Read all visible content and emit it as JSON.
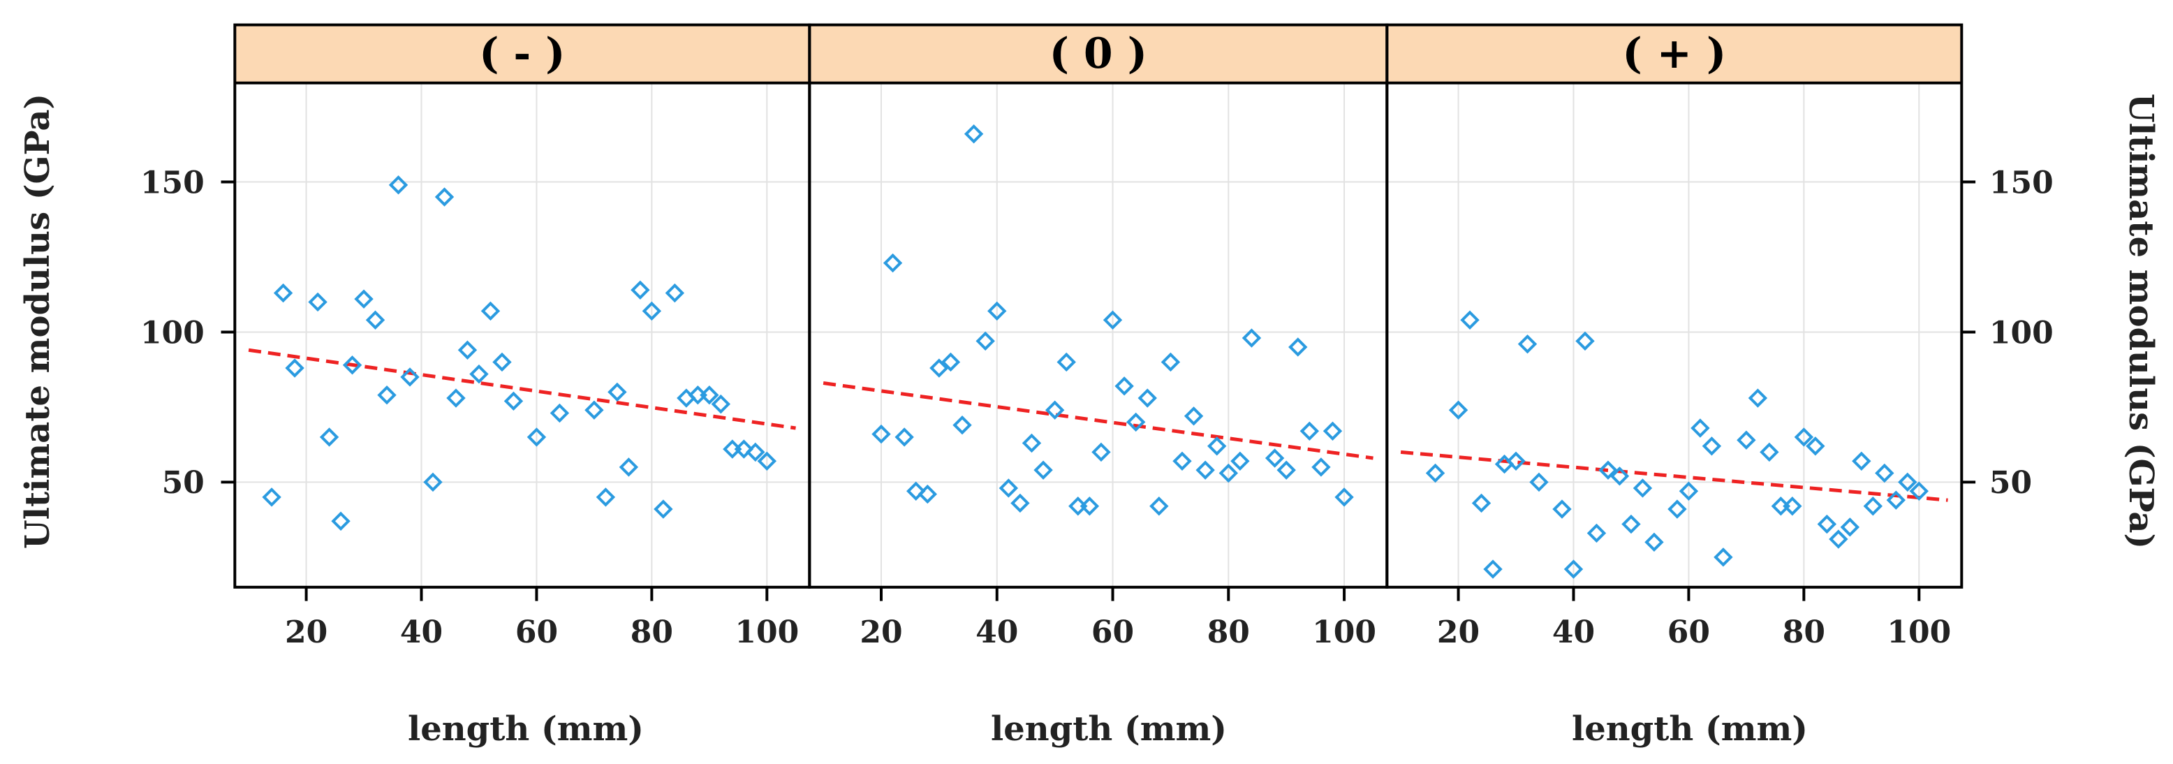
{
  "chart_data": {
    "type": "scatter",
    "layout": "three panels side by side",
    "xlabel": "length (mm)",
    "ylabel": "Ultimate modulus (GPa)",
    "xlim": [
      10,
      105
    ],
    "ylim": [
      15,
      183
    ],
    "xticks": [
      20,
      40,
      60,
      80,
      100
    ],
    "yticks": [
      50,
      100,
      150
    ],
    "grid": true,
    "colors": {
      "points": "#2b9be0",
      "trend": "#ee2222",
      "strip": "#fcd9b4",
      "frame": "#000000"
    },
    "panels": [
      {
        "label": "( - )",
        "trend": {
          "x": [
            10,
            105
          ],
          "y": [
            94,
            68
          ]
        },
        "points": [
          [
            14,
            45
          ],
          [
            16,
            113
          ],
          [
            18,
            88
          ],
          [
            22,
            110
          ],
          [
            24,
            65
          ],
          [
            26,
            37
          ],
          [
            28,
            89
          ],
          [
            30,
            111
          ],
          [
            32,
            104
          ],
          [
            34,
            79
          ],
          [
            36,
            149
          ],
          [
            38,
            85
          ],
          [
            42,
            50
          ],
          [
            44,
            145
          ],
          [
            46,
            78
          ],
          [
            48,
            94
          ],
          [
            50,
            86
          ],
          [
            52,
            107
          ],
          [
            54,
            90
          ],
          [
            56,
            77
          ],
          [
            60,
            65
          ],
          [
            64,
            73
          ],
          [
            70,
            74
          ],
          [
            72,
            45
          ],
          [
            74,
            80
          ],
          [
            76,
            55
          ],
          [
            78,
            114
          ],
          [
            80,
            107
          ],
          [
            82,
            41
          ],
          [
            84,
            113
          ],
          [
            86,
            78
          ],
          [
            88,
            79
          ],
          [
            90,
            79
          ],
          [
            92,
            76
          ],
          [
            94,
            61
          ],
          [
            96,
            61
          ],
          [
            98,
            60
          ],
          [
            100,
            57
          ]
        ]
      },
      {
        "label": "( 0 )",
        "trend": {
          "x": [
            10,
            105
          ],
          "y": [
            83,
            58
          ]
        },
        "points": [
          [
            20,
            66
          ],
          [
            22,
            123
          ],
          [
            24,
            65
          ],
          [
            26,
            47
          ],
          [
            28,
            46
          ],
          [
            30,
            88
          ],
          [
            32,
            90
          ],
          [
            34,
            69
          ],
          [
            36,
            166
          ],
          [
            38,
            97
          ],
          [
            40,
            107
          ],
          [
            42,
            48
          ],
          [
            44,
            43
          ],
          [
            46,
            63
          ],
          [
            48,
            54
          ],
          [
            50,
            74
          ],
          [
            52,
            90
          ],
          [
            54,
            42
          ],
          [
            56,
            42
          ],
          [
            58,
            60
          ],
          [
            60,
            104
          ],
          [
            62,
            82
          ],
          [
            64,
            70
          ],
          [
            66,
            78
          ],
          [
            68,
            42
          ],
          [
            70,
            90
          ],
          [
            72,
            57
          ],
          [
            74,
            72
          ],
          [
            76,
            54
          ],
          [
            78,
            62
          ],
          [
            80,
            53
          ],
          [
            82,
            57
          ],
          [
            84,
            98
          ],
          [
            88,
            58
          ],
          [
            90,
            54
          ],
          [
            92,
            95
          ],
          [
            94,
            67
          ],
          [
            96,
            55
          ],
          [
            98,
            67
          ],
          [
            100,
            45
          ]
        ]
      },
      {
        "label": "( + )",
        "trend": {
          "x": [
            10,
            105
          ],
          "y": [
            60,
            44
          ]
        },
        "points": [
          [
            16,
            53
          ],
          [
            20,
            74
          ],
          [
            22,
            104
          ],
          [
            24,
            43
          ],
          [
            26,
            21
          ],
          [
            28,
            56
          ],
          [
            30,
            57
          ],
          [
            32,
            96
          ],
          [
            34,
            50
          ],
          [
            38,
            41
          ],
          [
            40,
            21
          ],
          [
            42,
            97
          ],
          [
            44,
            33
          ],
          [
            46,
            54
          ],
          [
            48,
            52
          ],
          [
            50,
            36
          ],
          [
            52,
            48
          ],
          [
            54,
            30
          ],
          [
            58,
            41
          ],
          [
            60,
            47
          ],
          [
            62,
            68
          ],
          [
            64,
            62
          ],
          [
            66,
            25
          ],
          [
            70,
            64
          ],
          [
            72,
            78
          ],
          [
            74,
            60
          ],
          [
            76,
            42
          ],
          [
            78,
            42
          ],
          [
            80,
            65
          ],
          [
            82,
            62
          ],
          [
            84,
            36
          ],
          [
            86,
            31
          ],
          [
            88,
            35
          ],
          [
            90,
            57
          ],
          [
            92,
            42
          ],
          [
            94,
            53
          ],
          [
            96,
            44
          ],
          [
            98,
            50
          ],
          [
            100,
            47
          ]
        ]
      }
    ]
  }
}
